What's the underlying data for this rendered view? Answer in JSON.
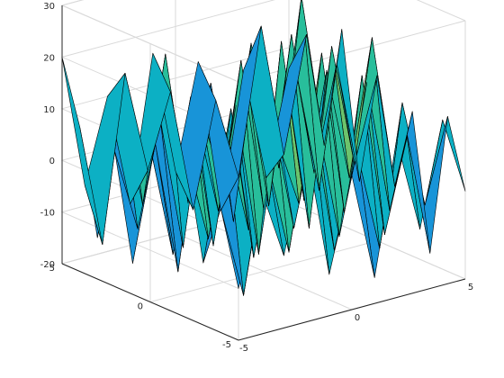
{
  "chart_data": {
    "type": "surface",
    "title": "",
    "xlabel": "",
    "ylabel": "",
    "zlabel": "",
    "xlim": [
      -5,
      5
    ],
    "ylim": [
      -5,
      5
    ],
    "zlim": [
      -20,
      30
    ],
    "x_ticks": [
      -5,
      0,
      5
    ],
    "y_ticks": [
      -5,
      0,
      5
    ],
    "z_ticks": [
      -20,
      -10,
      0,
      10,
      20,
      30
    ],
    "x_tick_labels": [
      "-5",
      "0",
      "5"
    ],
    "y_tick_labels": [
      "-5",
      "0",
      "5"
    ],
    "z_tick_labels": [
      "-20",
      "-10",
      "0",
      "10",
      "20",
      "30"
    ],
    "grid": true,
    "colormap": "parula",
    "colormap_stops": [
      "#352a87",
      "#3c48e0",
      "#2d6cec",
      "#1894d8",
      "#0cb0c4",
      "#28be9b",
      "#6cc36c",
      "#c3bf46",
      "#f9c839",
      "#f9fb0e"
    ],
    "x": [
      -5,
      -4,
      -3,
      -2,
      -1,
      0,
      1,
      2,
      3,
      4,
      5
    ],
    "y": [
      -5,
      -4,
      -3,
      -2,
      -1,
      0,
      1,
      2,
      3,
      4,
      5
    ],
    "z": [
      [
        -10,
        8,
        -6,
        14,
        -12,
        6,
        -15,
        10,
        -8,
        12,
        -3
      ],
      [
        4,
        -14,
        12,
        -8,
        18,
        -10,
        8,
        -12,
        15,
        -6,
        10
      ],
      [
        -8,
        16,
        -4,
        22,
        -6,
        14,
        -10,
        20,
        -12,
        6,
        -18
      ],
      [
        12,
        -6,
        18,
        -12,
        10,
        -4,
        24,
        -8,
        16,
        -10,
        8
      ],
      [
        -4,
        20,
        -10,
        16,
        -14,
        26,
        -6,
        18,
        -4,
        22,
        -8
      ],
      [
        10,
        -12,
        14,
        -6,
        22,
        -8,
        16,
        -14,
        20,
        -4,
        12
      ],
      [
        -14,
        8,
        -18,
        12,
        -4,
        18,
        -10,
        22,
        -6,
        14,
        -10
      ],
      [
        6,
        -10,
        10,
        -16,
        14,
        -6,
        20,
        -4,
        12,
        -12,
        18
      ],
      [
        -12,
        14,
        -8,
        20,
        -10,
        12,
        -16,
        16,
        -8,
        24,
        -6
      ],
      [
        8,
        -16,
        16,
        -4,
        10,
        -14,
        6,
        -10,
        18,
        -8,
        14
      ],
      [
        20,
        -6,
        10,
        -12,
        16,
        -8,
        12,
        -18,
        8,
        -14,
        6
      ]
    ]
  }
}
